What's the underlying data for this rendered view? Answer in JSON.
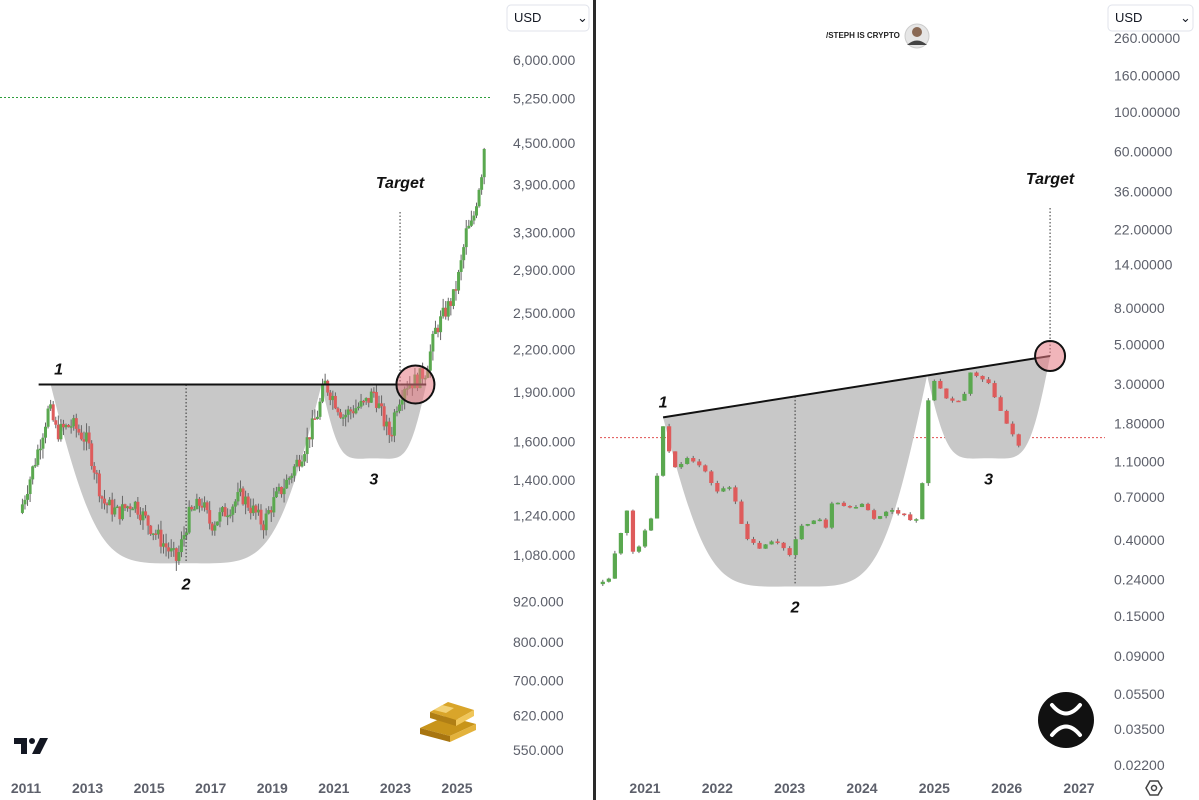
{
  "chart_data": [
    {
      "type": "candlestick",
      "title": "",
      "currency_selector": "USD",
      "y_scale": "log",
      "ylim": [
        520,
        7000
      ],
      "xlim": [
        2011.0,
        2026.0
      ],
      "y_ticks": [
        "6,000.000",
        "5,250.000",
        "4,500.000",
        "3,900.000",
        "3,300.000",
        "2,900.000",
        "2,500.000",
        "2,200.000",
        "1,900.000",
        "1,600.000",
        "1,400.000",
        "1,240.000",
        "1,080.000",
        "920.000",
        "800.000",
        "700.000",
        "620.000",
        "550.000"
      ],
      "x_ticks": [
        "2011",
        "2013",
        "2015",
        "2017",
        "2019",
        "2021",
        "2023",
        "2025"
      ],
      "horizontal_line": 5270,
      "neckline": {
        "x1": 2011.8,
        "y1": 1950,
        "x2": 2024.0,
        "y2": 1950
      },
      "cup": {
        "x_start": 2011.8,
        "x_end": 2020.6,
        "bottom": 1050
      },
      "handle": {
        "x_start": 2020.6,
        "x_end": 2024.0,
        "bottom": 1510
      },
      "target_x": 2023.15,
      "target_circle": {
        "x": 2023.65,
        "y": 1950
      },
      "labels": [
        "1",
        "2",
        "3",
        "Target"
      ],
      "brand_mark": "TradingView",
      "asset_icon": "gold-bars-icon",
      "series_path": [
        [
          2010.8,
          1250
        ],
        [
          2011.3,
          1500
        ],
        [
          2011.75,
          1800
        ],
        [
          2012.0,
          1650
        ],
        [
          2012.5,
          1700
        ],
        [
          2013.0,
          1600
        ],
        [
          2013.5,
          1300
        ],
        [
          2014.0,
          1250
        ],
        [
          2014.5,
          1300
        ],
        [
          2015.0,
          1200
        ],
        [
          2015.5,
          1120
        ],
        [
          2015.9,
          1060
        ],
        [
          2016.3,
          1240
        ],
        [
          2016.7,
          1300
        ],
        [
          2017.0,
          1200
        ],
        [
          2017.5,
          1260
        ],
        [
          2018.0,
          1330
        ],
        [
          2018.5,
          1240
        ],
        [
          2018.7,
          1200
        ],
        [
          2019.0,
          1290
        ],
        [
          2019.5,
          1400
        ],
        [
          2020.0,
          1550
        ],
        [
          2020.5,
          1780
        ],
        [
          2020.7,
          1960
        ],
        [
          2021.0,
          1860
        ],
        [
          2021.3,
          1750
        ],
        [
          2021.7,
          1800
        ],
        [
          2022.0,
          1820
        ],
        [
          2022.3,
          1900
        ],
        [
          2022.7,
          1680
        ],
        [
          2022.85,
          1630
        ],
        [
          2023.0,
          1800
        ],
        [
          2023.3,
          1950
        ],
        [
          2023.7,
          1980
        ],
        [
          2024.0,
          2050
        ],
        [
          2024.3,
          2350
        ],
        [
          2024.6,
          2500
        ],
        [
          2024.9,
          2650
        ],
        [
          2025.1,
          2900
        ],
        [
          2025.3,
          3300
        ],
        [
          2025.5,
          3400
        ],
        [
          2025.7,
          3850
        ],
        [
          2025.85,
          4200
        ],
        [
          2025.95,
          5000
        ]
      ]
    },
    {
      "type": "candlestick",
      "title": "",
      "currency_selector": "USD",
      "y_scale": "log",
      "ylim": [
        0.02,
        300
      ],
      "xlim": [
        2020.2,
        2027.2
      ],
      "y_ticks": [
        "260.00000",
        "160.00000",
        "100.00000",
        "60.00000",
        "36.00000",
        "22.00000",
        "14.00000",
        "8.00000",
        "5.00000",
        "3.00000",
        "1.80000",
        "1.10000",
        "0.70000",
        "0.40000",
        "0.24000",
        "0.15000",
        "0.09000",
        "0.05500",
        "0.03500",
        "0.02200"
      ],
      "x_ticks": [
        "2021",
        "2022",
        "2023",
        "2024",
        "2025",
        "2026",
        "2027"
      ],
      "horizontal_line": 1.5,
      "neckline": {
        "x1": 2021.25,
        "y1": 1.95,
        "x2": 2026.6,
        "y2": 4.3
      },
      "cup": {
        "x_start": 2021.25,
        "x_end": 2024.9,
        "bottom": 0.22
      },
      "handle": {
        "x_start": 2024.9,
        "x_end": 2026.6,
        "bottom": 1.15
      },
      "target_x": 2026.6,
      "target_circle": {
        "x": 2026.6,
        "y": 4.3
      },
      "labels": [
        "1",
        "2",
        "3",
        "Target"
      ],
      "watermark": "/STEPH IS CRYPTO",
      "asset_icon": "xrp-logo-icon",
      "series_path": [
        [
          2020.0,
          0.14
        ],
        [
          2020.25,
          0.22
        ],
        [
          2020.5,
          0.25
        ],
        [
          2020.75,
          0.6
        ],
        [
          2020.85,
          0.3
        ],
        [
          2021.0,
          0.45
        ],
        [
          2021.1,
          0.55
        ],
        [
          2021.25,
          1.7
        ],
        [
          2021.4,
          1.0
        ],
        [
          2021.6,
          1.2
        ],
        [
          2021.8,
          1.0
        ],
        [
          2022.0,
          0.75
        ],
        [
          2022.2,
          0.8
        ],
        [
          2022.4,
          0.4
        ],
        [
          2022.6,
          0.36
        ],
        [
          2022.8,
          0.4
        ],
        [
          2023.0,
          0.34
        ],
        [
          2023.2,
          0.5
        ],
        [
          2023.4,
          0.52
        ],
        [
          2023.5,
          0.48
        ],
        [
          2023.6,
          0.7
        ],
        [
          2023.8,
          0.6
        ],
        [
          2024.0,
          0.65
        ],
        [
          2024.2,
          0.52
        ],
        [
          2024.4,
          0.6
        ],
        [
          2024.6,
          0.55
        ],
        [
          2024.8,
          0.5
        ],
        [
          2024.9,
          2.3
        ],
        [
          2025.0,
          3.2
        ],
        [
          2025.2,
          2.3
        ],
        [
          2025.4,
          2.5
        ],
        [
          2025.5,
          3.4
        ],
        [
          2025.7,
          3.1
        ],
        [
          2025.8,
          2.8
        ],
        [
          2025.95,
          1.95
        ],
        [
          2026.1,
          1.5
        ],
        [
          2026.2,
          1.3
        ]
      ]
    }
  ]
}
